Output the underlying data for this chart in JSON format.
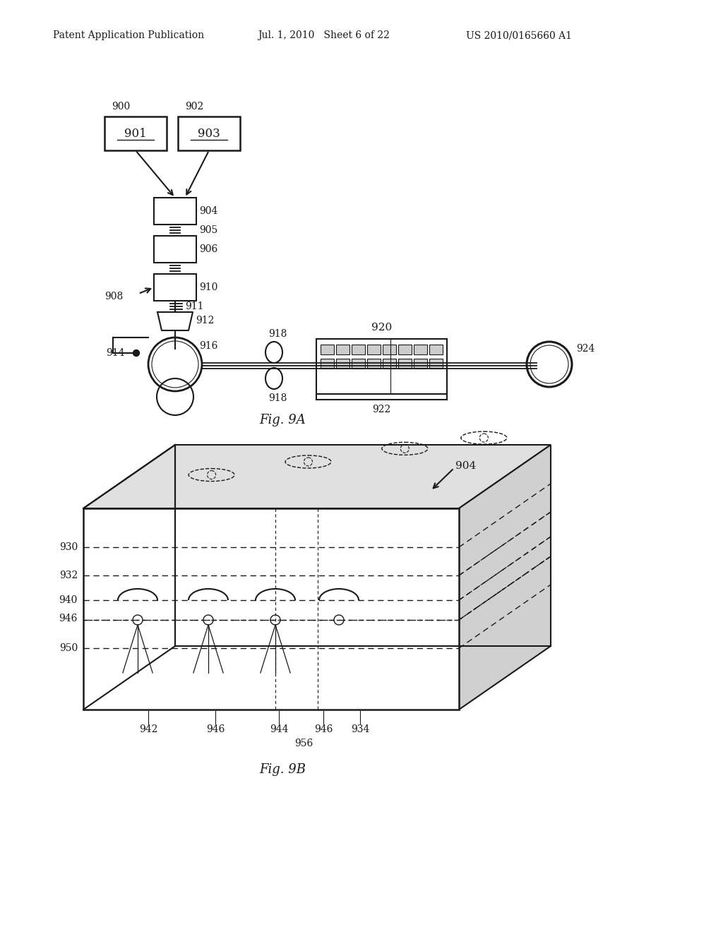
{
  "bg_color": "#ffffff",
  "line_color": "#1a1a1a",
  "header_left": "Patent Application Publication",
  "header_mid": "Jul. 1, 2010   Sheet 6 of 22",
  "header_right": "US 2010/0165660 A1",
  "fig9a_label": "Fig. 9A",
  "fig9b_label": "Fig. 9B"
}
